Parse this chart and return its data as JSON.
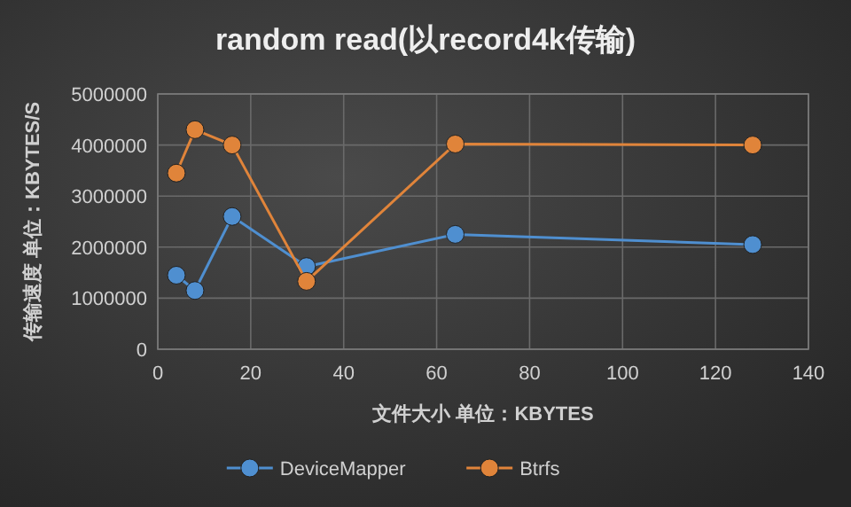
{
  "chart_data": {
    "type": "line",
    "title": "random read(以record4k传输)",
    "xlabel": "文件大小 单位：KBYTES",
    "ylabel": "传输速度 单位：KBYTES/S",
    "x": [
      4,
      8,
      16,
      32,
      64,
      128
    ],
    "series": [
      {
        "name": "DeviceMapper",
        "color": "#4f8fd0",
        "values": [
          1450000,
          1150000,
          2600000,
          1620000,
          2250000,
          2050000
        ]
      },
      {
        "name": "Btrfs",
        "color": "#e0843a",
        "values": [
          3450000,
          4300000,
          4000000,
          1330000,
          4020000,
          4000000
        ]
      }
    ],
    "xlim": [
      0,
      140
    ],
    "xticks": [
      0,
      20,
      40,
      60,
      80,
      100,
      120,
      140
    ],
    "ylim": [
      0,
      5000000
    ],
    "yticks": [
      0,
      1000000,
      2000000,
      3000000,
      4000000,
      5000000
    ],
    "grid": true,
    "legend": "bottom",
    "marker": "circle",
    "line_style": "solid"
  }
}
